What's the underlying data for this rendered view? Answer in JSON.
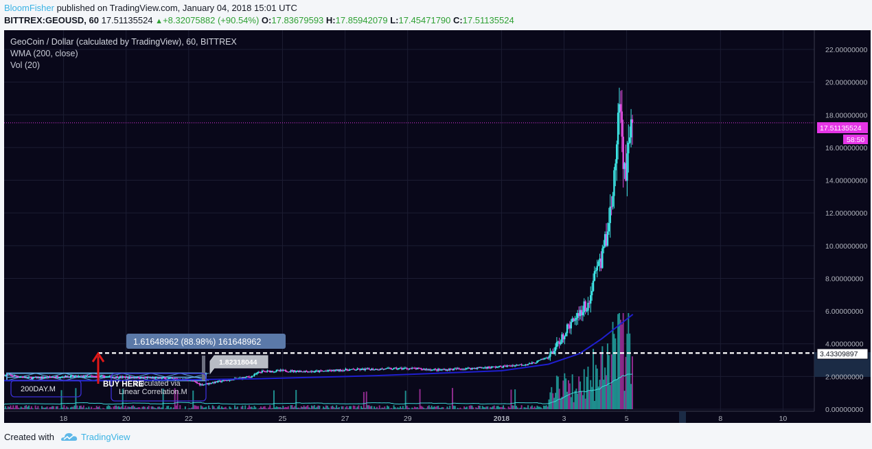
{
  "header": {
    "author": "BloomFisher",
    "published": " published on TradingView.com, January 04, 2018 15:01 UTC",
    "symbol": "BITTREX:GEOUSD, 60",
    "last": "17.51135524",
    "change": "+8.32075882 (+90.54%)",
    "o_label": "O:",
    "o_value": "17.83679593",
    "h_label": "H:",
    "h_value": "17.85942079",
    "l_label": "L:",
    "l_value": "17.45471790",
    "c_label": "C:",
    "c_value": "17.51135524"
  },
  "legend": {
    "title": "GeoCoin / Dollar (calculated by TradingView), 60, BITTREX",
    "wma": "WMA (200, close)",
    "vol": "Vol (20)"
  },
  "annotations": {
    "measure": "1.61648962 (88.98%) 161648962",
    "callout": "1.82318044",
    "buy_here": "BUY HERE",
    "note_line1": "calculated via",
    "note_line2": "Linear Correlation.M",
    "label_200day": "200DAY.M",
    "dashed_level": "3.43309897",
    "price_tag": "17.51135524",
    "countdown_tag": "58:50"
  },
  "footer": {
    "created_with": "Created with",
    "brand": "TradingView"
  },
  "colors": {
    "background": "#09081a",
    "bull": "#3ee6e6",
    "bear": "#e24ee0",
    "wma": "#1f1fcf",
    "price_tag": "#e535e6",
    "accent": "#3bb3e4"
  },
  "chart_data": {
    "type": "candlestick",
    "y_ticks": [
      "22.00000000",
      "20.00000000",
      "18.00000000",
      "16.00000000",
      "14.00000000",
      "12.00000000",
      "10.00000000",
      "8.00000000",
      "6.00000000",
      "4.00000000",
      "2.00000000",
      "0.00000000"
    ],
    "y_tick_values": [
      22,
      20,
      18,
      16,
      14,
      12,
      10,
      8,
      6,
      4,
      2,
      0
    ],
    "ylim": [
      0,
      23
    ],
    "x_ticks": [
      {
        "label": "18",
        "day": 18
      },
      {
        "label": "20",
        "day": 20
      },
      {
        "label": "22",
        "day": 22
      },
      {
        "label": "25",
        "day": 25
      },
      {
        "label": "27",
        "day": 27
      },
      {
        "label": "29",
        "day": 29
      },
      {
        "label": "2018",
        "day": 32
      },
      {
        "label": "3",
        "day": 34
      },
      {
        "label": "5",
        "day": 36
      },
      {
        "label": "8",
        "day": 39
      },
      {
        "label": "10",
        "day": 41
      }
    ],
    "xlim": [
      16.1,
      42.0
    ],
    "price_path": [
      [
        16.1,
        2.1
      ],
      [
        17,
        1.9
      ],
      [
        18,
        2.0
      ],
      [
        19,
        2.0
      ],
      [
        20,
        1.95
      ],
      [
        21,
        1.9
      ],
      [
        22,
        1.8
      ],
      [
        22.4,
        1.5
      ],
      [
        23,
        1.7
      ],
      [
        24,
        2.0
      ],
      [
        24.3,
        2.3
      ],
      [
        25,
        2.35
      ],
      [
        26,
        2.3
      ],
      [
        27,
        2.4
      ],
      [
        28,
        2.45
      ],
      [
        29,
        2.5
      ],
      [
        30,
        2.4
      ],
      [
        31,
        2.5
      ],
      [
        32,
        2.6
      ],
      [
        33,
        2.8
      ],
      [
        33.5,
        3.2
      ],
      [
        33.8,
        4.0
      ],
      [
        34,
        4.6
      ],
      [
        34.3,
        5.5
      ],
      [
        34.5,
        6.0
      ],
      [
        34.8,
        6.5
      ],
      [
        35,
        8.5
      ],
      [
        35.2,
        9.2
      ],
      [
        35.3,
        10.0
      ],
      [
        35.5,
        12.5
      ],
      [
        35.6,
        14.0
      ],
      [
        35.7,
        17.0
      ],
      [
        35.8,
        18.5
      ],
      [
        35.9,
        15.0
      ],
      [
        36.0,
        14.5
      ],
      [
        36.1,
        17.0
      ],
      [
        36.2,
        17.51
      ]
    ],
    "wma_path": [
      [
        16.1,
        1.75
      ],
      [
        20,
        1.75
      ],
      [
        24,
        1.85
      ],
      [
        28,
        2.05
      ],
      [
        32,
        2.35
      ],
      [
        33.5,
        2.75
      ],
      [
        34.5,
        3.4
      ],
      [
        35.2,
        4.3
      ],
      [
        35.8,
        5.2
      ],
      [
        36.2,
        5.8
      ]
    ],
    "last_price": 17.51135524,
    "dashed_level": 3.43309897
  }
}
